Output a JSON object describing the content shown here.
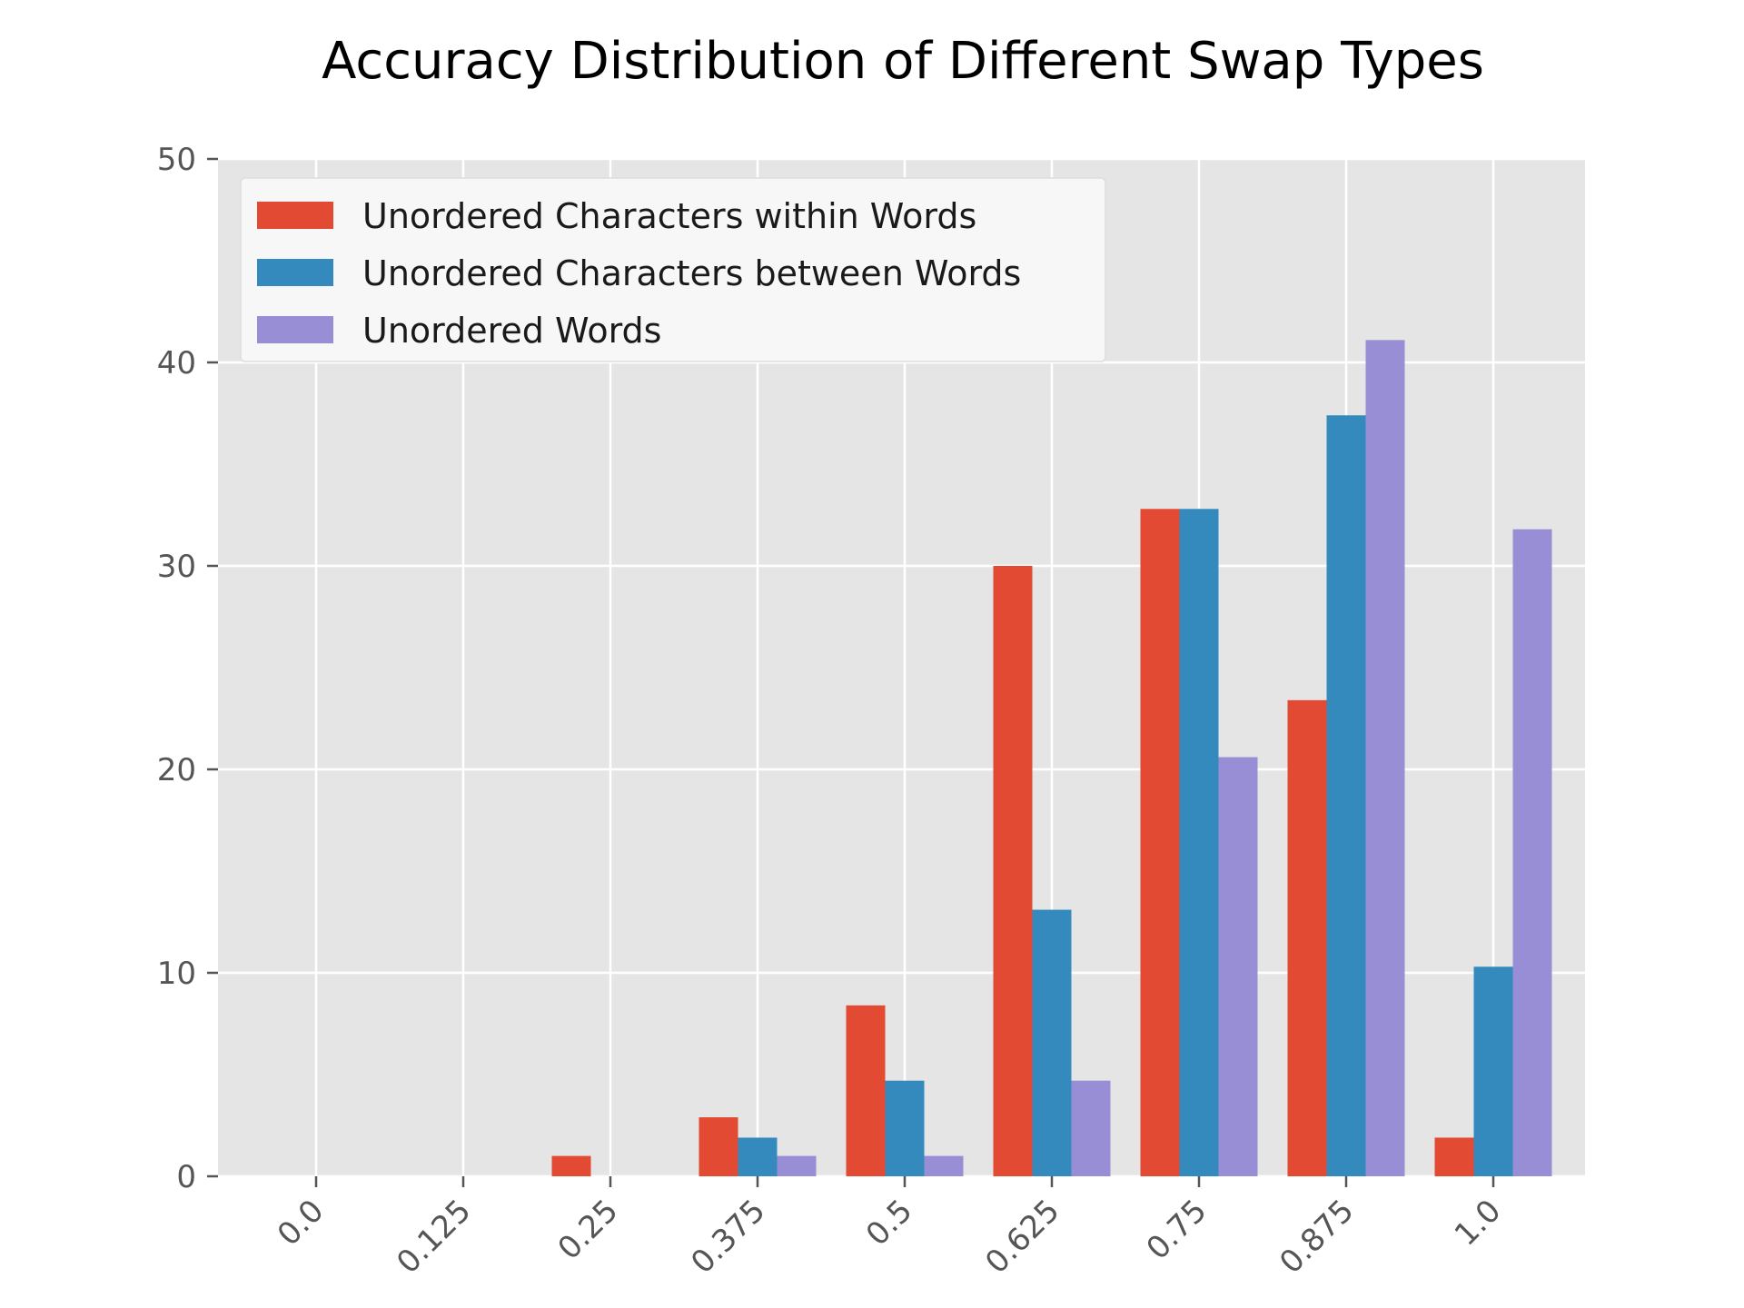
{
  "chart_data": {
    "type": "bar",
    "title": "Accuracy Distribution of Different Swap Types",
    "xlabel": "",
    "ylabel": "",
    "categories": [
      "0.0",
      "0.125",
      "0.25",
      "0.375",
      "0.5",
      "0.625",
      "0.75",
      "0.875",
      "1.0"
    ],
    "ylim": [
      0,
      50
    ],
    "yticks": [
      "0",
      "10",
      "20",
      "30",
      "40",
      "50"
    ],
    "grid": true,
    "legend_position": "top-left",
    "series": [
      {
        "name": "Unordered Characters within Words",
        "color": "#e24a33",
        "values": [
          0,
          0,
          1,
          2.9,
          8.4,
          30,
          32.8,
          23.4,
          1.9
        ]
      },
      {
        "name": "Unordered Characters between Words",
        "color": "#348abd",
        "values": [
          0,
          0,
          0,
          1.9,
          4.7,
          13.1,
          32.8,
          37.4,
          10.3
        ]
      },
      {
        "name": "Unordered Words",
        "color": "#988ed5",
        "values": [
          0,
          0,
          0,
          1,
          1,
          4.7,
          20.6,
          41.1,
          31.8
        ]
      }
    ]
  }
}
